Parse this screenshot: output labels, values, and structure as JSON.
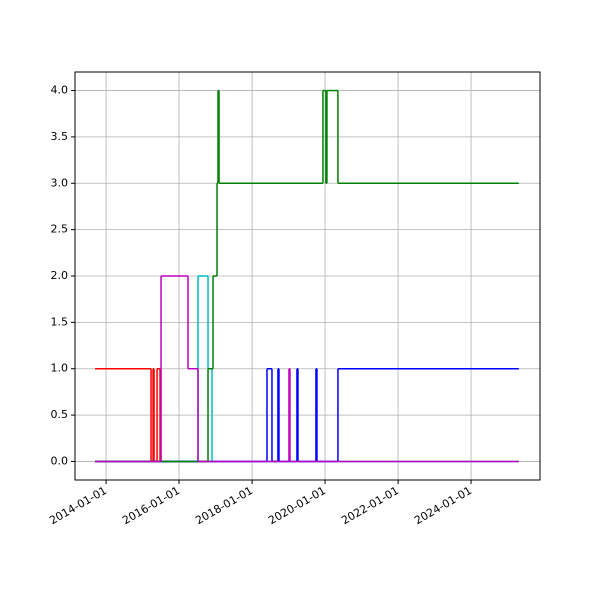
{
  "chart_data": {
    "type": "line",
    "step": "post",
    "grid": true,
    "xlim": [
      "2013-02-24",
      "2025-11-21"
    ],
    "xticks": [
      "2014-01-01",
      "2016-01-01",
      "2018-01-01",
      "2020-01-01",
      "2022-01-01",
      "2024-01-01"
    ],
    "ylim": [
      -0.2,
      4.2
    ],
    "yticks": [
      {
        "value": 0,
        "label": "0.0"
      },
      {
        "value": 0.5,
        "label": "0.5"
      },
      {
        "value": 1,
        "label": "1.0"
      },
      {
        "value": 1.5,
        "label": "1.5"
      },
      {
        "value": 2,
        "label": "2.0"
      },
      {
        "value": 2.5,
        "label": "2.5"
      },
      {
        "value": 3,
        "label": "3.0"
      },
      {
        "value": 3.5,
        "label": "3.5"
      },
      {
        "value": 4,
        "label": "4.0"
      }
    ],
    "series": [
      {
        "color": "#ff0000",
        "x": [
          "2013-09-13",
          "2015-03-27",
          "2015-04-16",
          "2015-04-26",
          "2015-05-26",
          "2015-06-25",
          "2016-11-06"
        ],
        "values": [
          1,
          0,
          1,
          0,
          1,
          0,
          0
        ]
      },
      {
        "color": "#00bfbf",
        "x": [
          "2013-09-13",
          "2016-07-09",
          "2016-10-17",
          "2016-11-26",
          "2025-04-23"
        ],
        "values": [
          0,
          2,
          1,
          0,
          0
        ]
      },
      {
        "color": "#0000ff",
        "x": [
          "2013-09-13",
          "2018-05-30",
          "2018-07-19",
          "2018-09-17",
          "2018-09-27",
          "2019-03-26",
          "2019-04-05",
          "2019-10-02",
          "2019-10-12",
          "2020-05-09",
          "2025-04-23"
        ],
        "values": [
          0,
          1,
          0,
          1,
          0,
          1,
          0,
          1,
          0,
          1,
          1
        ]
      },
      {
        "color": "#008000",
        "x": [
          "2013-09-13",
          "2016-10-17",
          "2016-12-06",
          "2017-01-15",
          "2017-01-25",
          "2017-02-04",
          "2019-12-11",
          "2020-01-10",
          "2020-01-20",
          "2020-05-09",
          "2025-04-23"
        ],
        "values": [
          0,
          1,
          2,
          3,
          4,
          3,
          4,
          3,
          4,
          3,
          3
        ]
      },
      {
        "color": "#bf00bf",
        "x": [
          "2013-09-13",
          "2015-07-05",
          "2016-03-31",
          "2016-07-09",
          "2019-01-05",
          "2019-01-15",
          "2025-04-23"
        ],
        "values": [
          0,
          2,
          1,
          0,
          1,
          0,
          0
        ]
      }
    ]
  }
}
